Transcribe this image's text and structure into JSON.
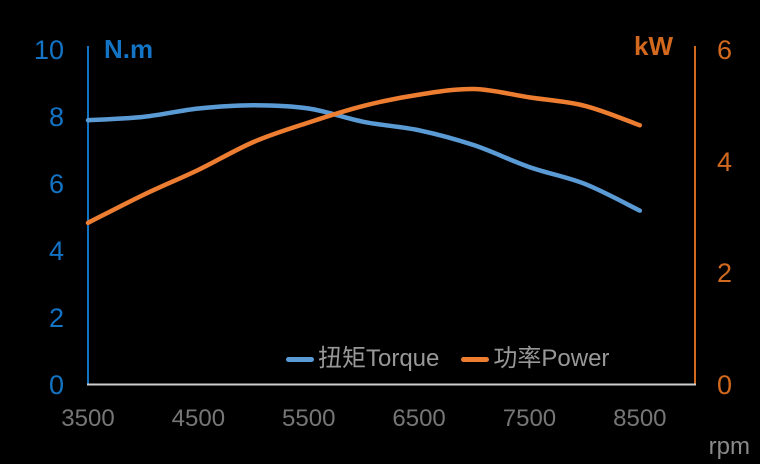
{
  "chart_data": {
    "type": "line",
    "title": "",
    "x_axis": {
      "label": "rpm",
      "ticks": [
        3500,
        4500,
        5500,
        6500,
        7500,
        8500
      ],
      "range": [
        3500,
        9000
      ],
      "line_color": "#CFCFCF"
    },
    "y_axis_left": {
      "label": "N.m",
      "ticks": [
        0,
        2,
        4,
        6,
        8,
        10
      ],
      "range": [
        0,
        10
      ],
      "color": "#1373C4"
    },
    "y_axis_right": {
      "label": "kW",
      "ticks": [
        0,
        2,
        4,
        6
      ],
      "range": [
        0,
        6
      ],
      "color": "#D2691E"
    },
    "x": [
      3500,
      4000,
      4500,
      5000,
      5500,
      6000,
      6500,
      7000,
      7500,
      8000,
      8500
    ],
    "series": [
      {
        "name": "扭矩Torque",
        "axis": "left",
        "color": "#5B9BD5",
        "values": [
          7.9,
          8.0,
          8.25,
          8.35,
          8.25,
          7.85,
          7.6,
          7.15,
          6.5,
          6.0,
          5.2
        ]
      },
      {
        "name": "功率Power",
        "axis": "right",
        "color": "#ED7D31",
        "values": [
          2.9,
          3.4,
          3.85,
          4.35,
          4.7,
          5.0,
          5.2,
          5.3,
          5.15,
          5.0,
          4.65
        ]
      }
    ],
    "grid": false,
    "legend_position": "bottom-center-inside",
    "background": "#000000"
  }
}
